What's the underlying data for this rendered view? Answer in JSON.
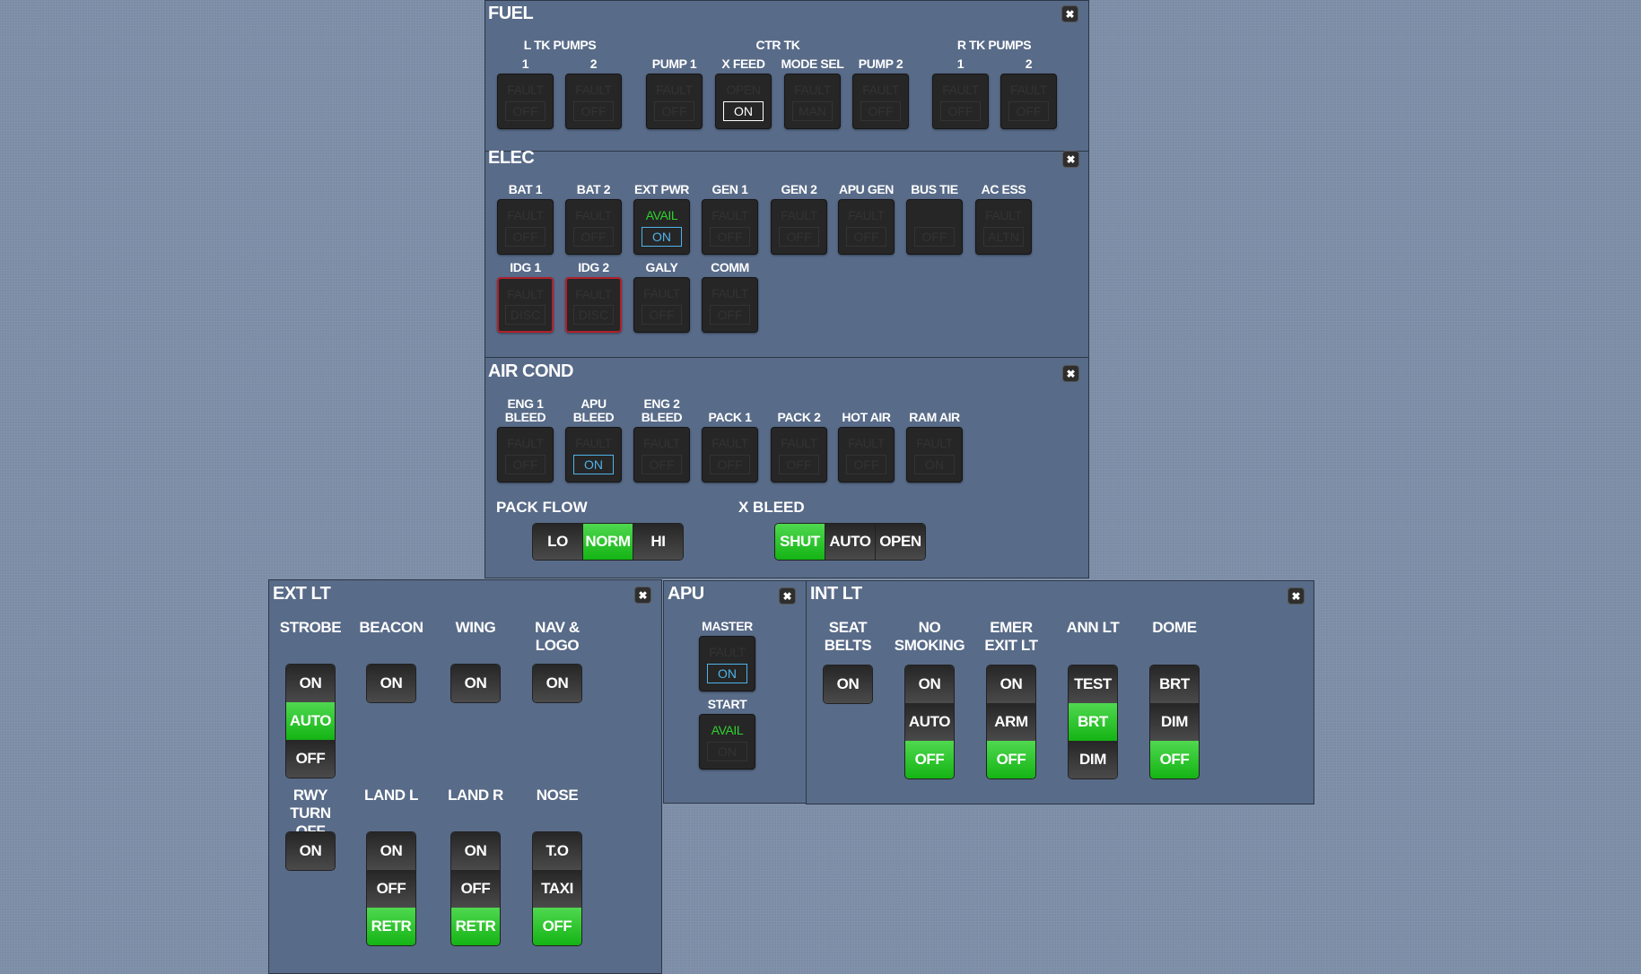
{
  "colors": {
    "background": "#7b8ca6",
    "panel": "#586b88",
    "selected_green": "#22c322",
    "avail_green": "#2ed12e",
    "on_blue": "#4fb3ea",
    "fault_red": "#b0202a"
  },
  "close_icon": "close-x-icon",
  "fuel": {
    "title": "FUEL",
    "groups": [
      "L TK PUMPS",
      "CTR TK",
      "R TK PUMPS"
    ],
    "buttons": [
      {
        "label": "1",
        "top": "FAULT",
        "sw": "OFF",
        "sw_state": "dim"
      },
      {
        "label": "2",
        "top": "FAULT",
        "sw": "OFF",
        "sw_state": "dim"
      },
      {
        "label": "PUMP 1",
        "top": "FAULT",
        "sw": "OFF",
        "sw_state": "dim"
      },
      {
        "label": "X FEED",
        "top": "OPEN",
        "sw": "ON",
        "sw_state": "white"
      },
      {
        "label": "MODE SEL",
        "top": "FAULT",
        "sw": "MAN",
        "sw_state": "dim"
      },
      {
        "label": "PUMP 2",
        "top": "FAULT",
        "sw": "OFF",
        "sw_state": "dim"
      },
      {
        "label": "1",
        "top": "FAULT",
        "sw": "OFF",
        "sw_state": "dim"
      },
      {
        "label": "2",
        "top": "FAULT",
        "sw": "OFF",
        "sw_state": "dim"
      }
    ]
  },
  "elec": {
    "title": "ELEC",
    "buttons": [
      {
        "label": "BAT 1",
        "top": "FAULT",
        "sw": "OFF",
        "sw_state": "dim"
      },
      {
        "label": "BAT 2",
        "top": "FAULT",
        "sw": "OFF",
        "sw_state": "dim"
      },
      {
        "label": "EXT PWR",
        "top": "AVAIL",
        "top_state": "green",
        "sw": "ON",
        "sw_state": "blue"
      },
      {
        "label": "GEN 1",
        "top": "FAULT",
        "sw": "OFF",
        "sw_state": "dim"
      },
      {
        "label": "GEN 2",
        "top": "FAULT",
        "sw": "OFF",
        "sw_state": "dim"
      },
      {
        "label": "APU GEN",
        "top": "FAULT",
        "sw": "OFF",
        "sw_state": "dim"
      },
      {
        "label": "BUS TIE",
        "top": "",
        "sw": "OFF",
        "sw_state": "dim"
      },
      {
        "label": "AC ESS",
        "top": "FAULT",
        "sw": "ALTN",
        "sw_state": "dim"
      },
      {
        "label": "IDG 1",
        "top": "FAULT",
        "sw": "DISC",
        "sw_state": "dim",
        "guarded": true
      },
      {
        "label": "IDG 2",
        "top": "FAULT",
        "sw": "DISC",
        "sw_state": "dim",
        "guarded": true
      },
      {
        "label": "GALY",
        "top": "FAULT",
        "sw": "OFF",
        "sw_state": "dim"
      },
      {
        "label": "COMM",
        "top": "FAULT",
        "sw": "OFF",
        "sw_state": "dim"
      }
    ]
  },
  "air_cond": {
    "title": "AIR COND",
    "buttons": [
      {
        "label": "ENG 1\nBLEED",
        "top": "FAULT",
        "sw": "OFF",
        "sw_state": "dim"
      },
      {
        "label": "APU\nBLEED",
        "top": "FAULT",
        "sw": "ON",
        "sw_state": "blue"
      },
      {
        "label": "ENG 2\nBLEED",
        "top": "FAULT",
        "sw": "OFF",
        "sw_state": "dim"
      },
      {
        "label": "PACK 1",
        "top": "FAULT",
        "sw": "OFF",
        "sw_state": "dim"
      },
      {
        "label": "PACK 2",
        "top": "FAULT",
        "sw": "OFF",
        "sw_state": "dim"
      },
      {
        "label": "HOT AIR",
        "top": "FAULT",
        "sw": "OFF",
        "sw_state": "dim"
      },
      {
        "label": "RAM AIR",
        "top": "FAULT",
        "sw": "ON",
        "sw_state": "dim"
      }
    ],
    "pack_flow": {
      "label": "PACK FLOW",
      "options": [
        "LO",
        "NORM",
        "HI"
      ],
      "selected": "NORM"
    },
    "x_bleed": {
      "label": "X BLEED",
      "options": [
        "SHUT",
        "AUTO",
        "OPEN"
      ],
      "selected": "SHUT"
    }
  },
  "ext_lt": {
    "title": "EXT LT",
    "switches": [
      {
        "label": "STROBE",
        "options": [
          "ON",
          "AUTO",
          "OFF"
        ],
        "selected": "AUTO"
      },
      {
        "label": "BEACON",
        "options": [
          "ON"
        ],
        "selected": ""
      },
      {
        "label": "WING",
        "options": [
          "ON"
        ],
        "selected": ""
      },
      {
        "label": "NAV &\nLOGO",
        "options": [
          "ON"
        ],
        "selected": ""
      },
      {
        "label": "RWY\nTURN\nOFF",
        "options": [
          "ON"
        ],
        "selected": ""
      },
      {
        "label": "LAND L",
        "options": [
          "ON",
          "OFF",
          "RETR"
        ],
        "selected": "RETR"
      },
      {
        "label": "LAND R",
        "options": [
          "ON",
          "OFF",
          "RETR"
        ],
        "selected": "RETR"
      },
      {
        "label": "NOSE",
        "options": [
          "T.O",
          "TAXI",
          "OFF"
        ],
        "selected": "OFF"
      }
    ]
  },
  "apu": {
    "title": "APU",
    "buttons": [
      {
        "label": "MASTER",
        "top": "FAULT",
        "sw": "ON",
        "sw_state": "blue"
      },
      {
        "label": "START",
        "top": "AVAIL",
        "top_state": "green",
        "sw": "ON",
        "sw_state": "dim"
      }
    ]
  },
  "int_lt": {
    "title": "INT LT",
    "switches": [
      {
        "label": "SEAT\nBELTS",
        "options": [
          "ON"
        ],
        "selected": ""
      },
      {
        "label": "NO\nSMOKING",
        "options": [
          "ON",
          "AUTO",
          "OFF"
        ],
        "selected": "OFF"
      },
      {
        "label": "EMER\nEXIT LT",
        "options": [
          "ON",
          "ARM",
          "OFF"
        ],
        "selected": "OFF"
      },
      {
        "label": "ANN LT",
        "options": [
          "TEST",
          "BRT",
          "DIM"
        ],
        "selected": "BRT"
      },
      {
        "label": "DOME",
        "options": [
          "BRT",
          "DIM",
          "OFF"
        ],
        "selected": "OFF"
      }
    ]
  }
}
